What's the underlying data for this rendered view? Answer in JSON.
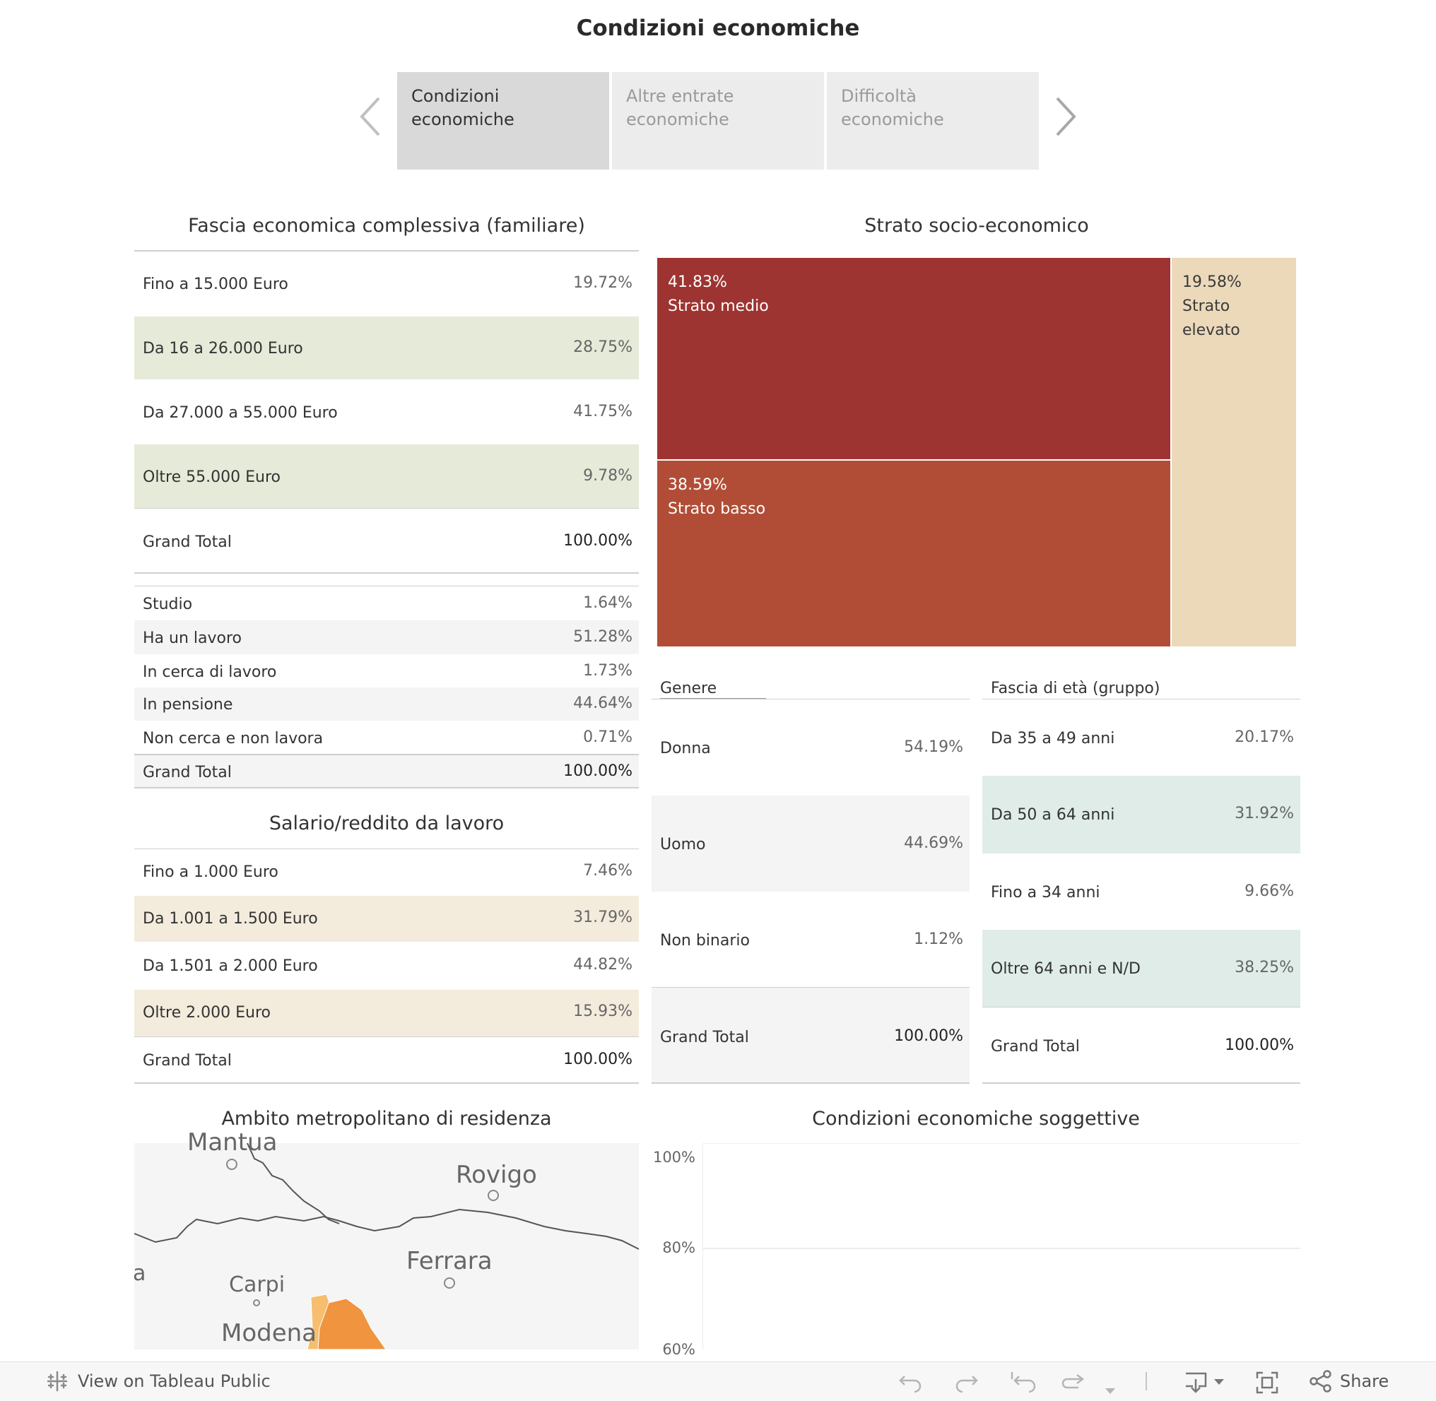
{
  "page_title": "Condizioni economiche",
  "story": {
    "prev_icon": "chevron-left-icon",
    "next_icon": "chevron-right-icon",
    "tabs": [
      "Condizioni economiche",
      "Altre entrate economiche",
      "Difficoltà economiche"
    ]
  },
  "fascia": {
    "title": "Fascia economica complessiva (familiare)",
    "rows": [
      {
        "label": "Fino a 15.000 Euro",
        "value": "19.72%"
      },
      {
        "label": "Da 16 a 26.000 Euro",
        "value": "28.75%"
      },
      {
        "label": "Da 27.000 a 55.000 Euro",
        "value": "41.75%"
      },
      {
        "label": "Oltre 55.000 Euro",
        "value": "9.78%"
      }
    ],
    "total_label": "Grand Total",
    "total_value": "100.00%"
  },
  "condizione": {
    "rows": [
      {
        "label": "Studio",
        "value": "1.64%"
      },
      {
        "label": "Ha un lavoro",
        "value": "51.28%"
      },
      {
        "label": "In cerca di lavoro",
        "value": "1.73%"
      },
      {
        "label": "In pensione",
        "value": "44.64%"
      },
      {
        "label": "Non cerca e non lavora",
        "value": "0.71%"
      }
    ],
    "total_label": "Grand Total",
    "total_value": "100.00%"
  },
  "salario": {
    "title": "Salario/reddito da lavoro",
    "rows": [
      {
        "label": "Fino a 1.000 Euro",
        "value": "7.46%"
      },
      {
        "label": "Da 1.001 a 1.500 Euro",
        "value": "31.79%"
      },
      {
        "label": "Da 1.501 a 2.000 Euro",
        "value": "44.82%"
      },
      {
        "label": "Oltre 2.000 Euro",
        "value": "15.93%"
      }
    ],
    "total_label": "Grand Total",
    "total_value": "100.00%"
  },
  "strato": {
    "title": "Strato socio-economico",
    "cells": [
      {
        "pct": "41.83%",
        "label": "Strato medio",
        "color": "#9e3431"
      },
      {
        "pct": "38.59%",
        "label": "Strato basso",
        "color": "#b14d36"
      },
      {
        "pct": "19.58%",
        "label": "Strato",
        "label2": "elevato",
        "color": "#ecd9ba"
      }
    ]
  },
  "genere": {
    "title": "Genere",
    "rows": [
      {
        "label": "Donna",
        "value": "54.19%"
      },
      {
        "label": "Uomo",
        "value": "44.69%"
      },
      {
        "label": "Non binario",
        "value": "1.12%"
      }
    ],
    "total_label": "Grand Total",
    "total_value": "100.00%"
  },
  "eta": {
    "title": "Fascia di età (gruppo)",
    "rows": [
      {
        "label": "Da 35 a 49 anni",
        "value": "20.17%"
      },
      {
        "label": "Da 50 a 64 anni",
        "value": "31.92%"
      },
      {
        "label": "Fino a 34 anni",
        "value": "9.66%"
      },
      {
        "label": "Oltre 64 anni e N/D",
        "value": "38.25%"
      }
    ],
    "total_label": "Grand Total",
    "total_value": "100.00%"
  },
  "map": {
    "title": "Ambito metropolitano di residenza",
    "labels": {
      "mantua": "Mantua",
      "rovigo": "Rovigo",
      "ferrara": "Ferrara",
      "carpi": "Carpi",
      "modena": "Modena",
      "edge": "a"
    }
  },
  "soggettive": {
    "title": "Condizioni economiche soggettive",
    "y_ticks": [
      "100%",
      "80%",
      "60%"
    ]
  },
  "chart_data": {
    "type": "bar",
    "title": "Condizioni economiche soggettive",
    "y_ticks": [
      "100%",
      "80%",
      "60%"
    ],
    "ylim": [
      60,
      100
    ],
    "series": []
  },
  "footer": {
    "view_label": "View on Tableau Public",
    "share_label": "Share",
    "icons": [
      "undo-icon",
      "redo-icon",
      "revert-icon",
      "refresh-icon",
      "download-icon",
      "fullscreen-icon",
      "share-icon"
    ]
  },
  "colors": {
    "green_band": "#e6ead9",
    "beige_band": "#f3ebdc",
    "teal_band": "#dfece8",
    "grey_band": "#f4f4f4",
    "map_orange": "#f0943f",
    "map_light_orange": "#f6be6e"
  }
}
